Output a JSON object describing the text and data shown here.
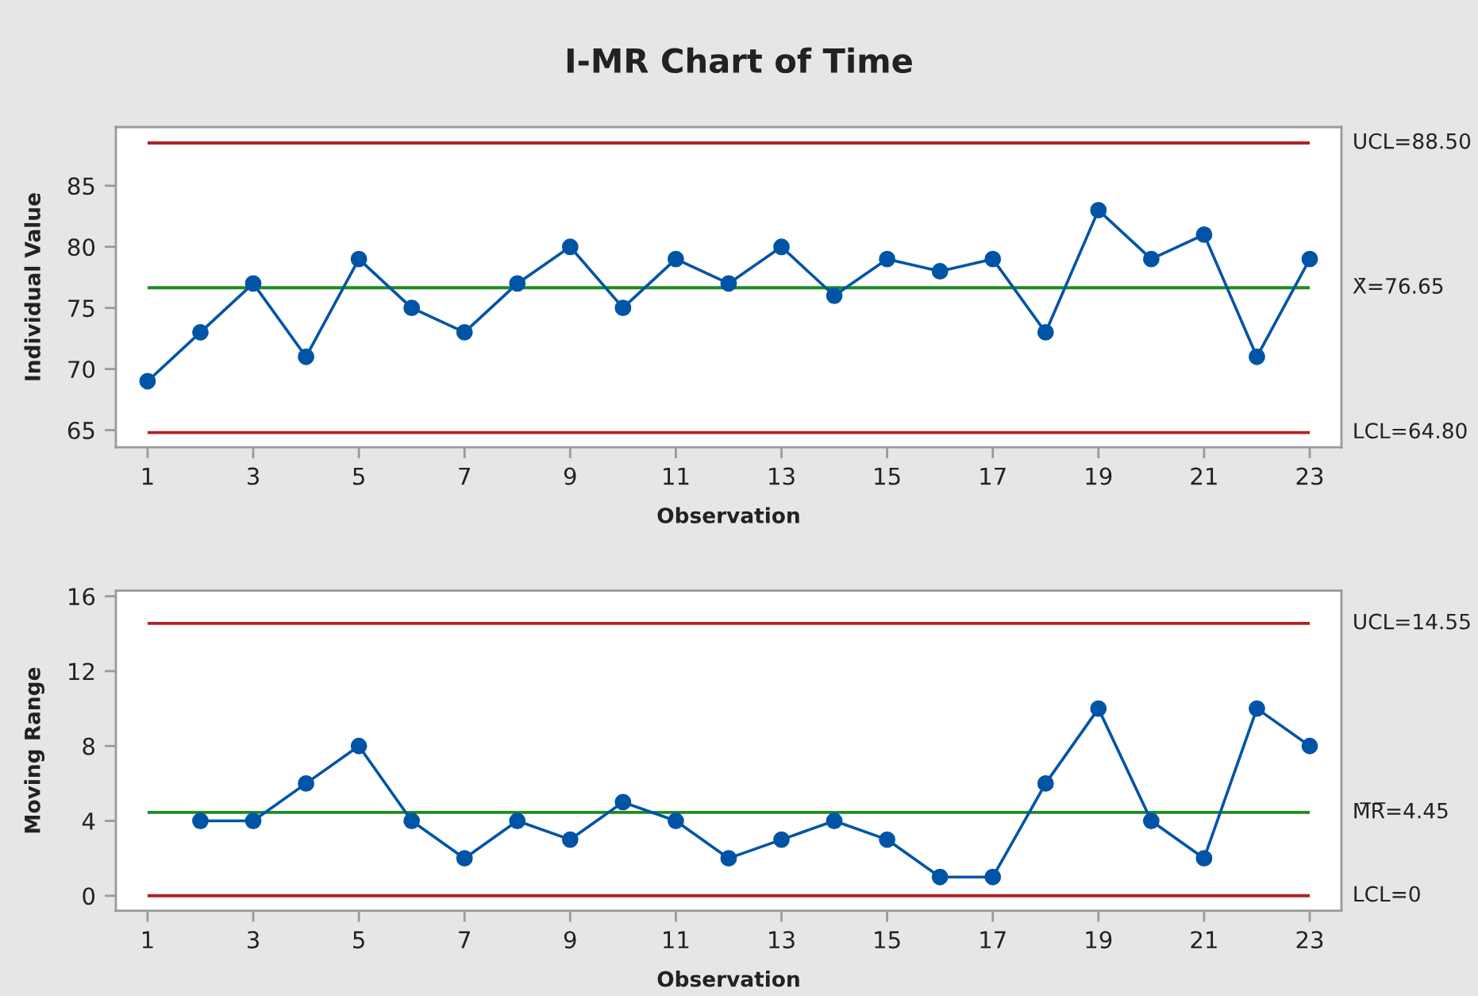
{
  "chart_data": [
    {
      "type": "line",
      "title": "I-MR Chart of Time",
      "xlabel": "Observation",
      "ylabel": "Individual Value",
      "x": [
        1,
        2,
        3,
        4,
        5,
        6,
        7,
        8,
        9,
        10,
        11,
        12,
        13,
        14,
        15,
        16,
        17,
        18,
        19,
        20,
        21,
        22,
        23
      ],
      "series": [
        {
          "color": "#0054a6",
          "values": [
            69,
            73,
            77,
            71,
            79,
            75,
            73,
            77,
            80,
            75,
            79,
            77,
            80,
            76,
            79,
            78,
            79,
            73,
            83,
            79,
            81,
            71,
            79
          ]
        }
      ],
      "xlim": [
        0.4,
        23.6
      ],
      "xticks": [
        1,
        3,
        5,
        7,
        9,
        11,
        13,
        15,
        17,
        19,
        21,
        23
      ],
      "ylim": [
        63.6,
        89.8
      ],
      "yticks": [
        65,
        70,
        75,
        80,
        85
      ],
      "ref_lines": [
        {
          "axis": "y",
          "value": 88.5,
          "label": "UCL=88.50",
          "color": "#b22222"
        },
        {
          "axis": "y",
          "value": 76.65,
          "label": "X̄=76.65",
          "color": "#1e8c1e"
        },
        {
          "axis": "y",
          "value": 64.8,
          "label": "LCL=64.80",
          "color": "#b22222"
        }
      ],
      "marker": "circle",
      "line_style": "solid"
    },
    {
      "type": "line",
      "xlabel": "Observation",
      "ylabel": "Moving Range",
      "x": [
        2,
        3,
        4,
        5,
        6,
        7,
        8,
        9,
        10,
        11,
        12,
        13,
        14,
        15,
        16,
        17,
        18,
        19,
        20,
        21,
        22,
        23
      ],
      "series": [
        {
          "color": "#0054a6",
          "values": [
            4,
            4,
            6,
            8,
            4,
            2,
            4,
            3,
            5,
            4,
            2,
            3,
            4,
            3,
            1,
            1,
            6,
            10,
            4,
            2,
            10,
            8
          ]
        }
      ],
      "xlim": [
        0.4,
        23.6
      ],
      "xticks": [
        1,
        3,
        5,
        7,
        9,
        11,
        13,
        15,
        17,
        19,
        21,
        23
      ],
      "ylim": [
        -0.8,
        16.3
      ],
      "yticks": [
        0,
        4,
        8,
        12,
        16
      ],
      "ref_lines": [
        {
          "axis": "y",
          "value": 14.55,
          "label": "UCL=14.55",
          "color": "#b22222"
        },
        {
          "axis": "y",
          "value": 4.45,
          "label": "M̅R̅=4.45",
          "color": "#1e8c1e"
        },
        {
          "axis": "y",
          "value": 0,
          "label": "LCL=0",
          "color": "#b22222"
        }
      ],
      "marker": "circle",
      "line_style": "solid"
    }
  ]
}
